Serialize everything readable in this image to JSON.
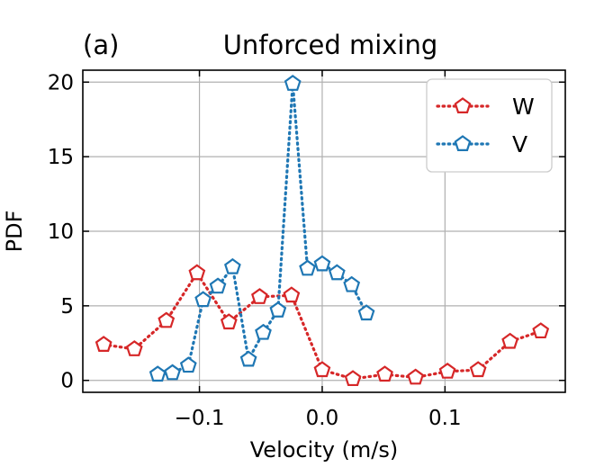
{
  "chart_data": {
    "type": "line",
    "panel_label": "(a)",
    "title": "Unforced mixing",
    "xlabel": "Velocity (m/s)",
    "ylabel": "PDF",
    "xlim": [
      -0.195,
      0.198
    ],
    "ylim": [
      -0.8,
      20.8
    ],
    "xticks": [
      -0.1,
      0.0,
      0.1
    ],
    "xtick_labels": [
      "−0.1",
      "0.0",
      "0.1"
    ],
    "yticks": [
      0,
      5,
      10,
      15,
      20
    ],
    "ytick_labels": [
      "0",
      "5",
      "10",
      "15",
      "20"
    ],
    "grid": true,
    "legend_position": "top-right",
    "series": [
      {
        "name": "W",
        "color": "#d62728",
        "marker": "pentagon",
        "linestyle": "dotted",
        "x": [
          -0.178,
          -0.153,
          -0.127,
          -0.102,
          -0.076,
          -0.051,
          -0.025,
          0.0,
          0.025,
          0.051,
          0.076,
          0.102,
          0.127,
          0.153,
          0.178
        ],
        "y": [
          2.4,
          2.1,
          4.0,
          7.2,
          3.9,
          5.6,
          5.7,
          0.7,
          0.1,
          0.4,
          0.2,
          0.6,
          0.7,
          2.6,
          3.3
        ]
      },
      {
        "name": "V",
        "color": "#1f77b4",
        "marker": "pentagon",
        "linestyle": "dotted",
        "x": [
          -0.134,
          -0.122,
          -0.109,
          -0.097,
          -0.085,
          -0.073,
          -0.06,
          -0.048,
          -0.036,
          -0.024,
          -0.012,
          0.0,
          0.012,
          0.024,
          0.036
        ],
        "y": [
          0.4,
          0.5,
          1.0,
          5.4,
          6.3,
          7.6,
          1.4,
          3.2,
          4.7,
          19.9,
          7.5,
          7.8,
          7.2,
          6.4,
          4.5
        ]
      }
    ]
  }
}
